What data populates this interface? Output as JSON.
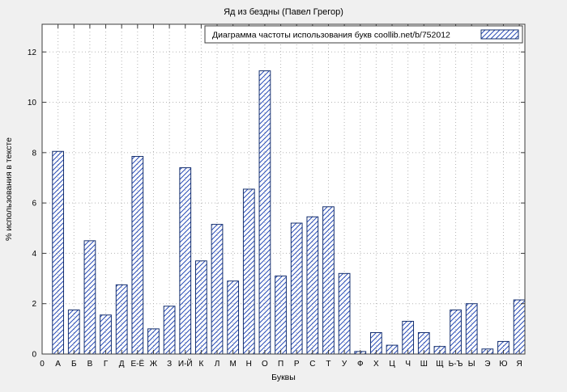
{
  "colors": {
    "page_bg": "#f0f0f0",
    "plot_bg": "#ffffff",
    "border": "#3c3c3c",
    "grid": "#b5b5b5",
    "bar_hatch": "#2a4db8",
    "bar_border": "#16306e"
  },
  "chart_data": {
    "type": "bar",
    "title": "Яд из бездны (Павел Грегор)",
    "legend": "Диаграмма частоты использования букв coollib.net/b/752012",
    "xlabel": "Буквы",
    "ylabel": "% использования в тексте",
    "origin_label": "0",
    "ylim": [
      0,
      13.1
    ],
    "yticks": [
      0,
      2,
      4,
      6,
      8,
      10,
      12
    ],
    "grid": "dotted, both axes",
    "legend_position": "top-right, boxed",
    "categories": [
      "А",
      "Б",
      "В",
      "Г",
      "Д",
      "Е-Ё",
      "Ж",
      "З",
      "И-Й",
      "К",
      "Л",
      "М",
      "Н",
      "О",
      "П",
      "Р",
      "С",
      "Т",
      "У",
      "Ф",
      "Х",
      "Ц",
      "Ч",
      "Ш",
      "Щ",
      "Ь-Ъ",
      "Ы",
      "Э",
      "Ю",
      "Я"
    ],
    "values": [
      8.05,
      1.75,
      4.5,
      1.55,
      2.75,
      7.85,
      1.0,
      1.9,
      7.4,
      3.7,
      5.15,
      2.9,
      6.55,
      11.25,
      3.1,
      5.2,
      5.45,
      5.85,
      3.2,
      0.1,
      0.85,
      0.35,
      1.3,
      0.85,
      0.3,
      1.75,
      2.0,
      0.2,
      0.5,
      2.15
    ]
  }
}
